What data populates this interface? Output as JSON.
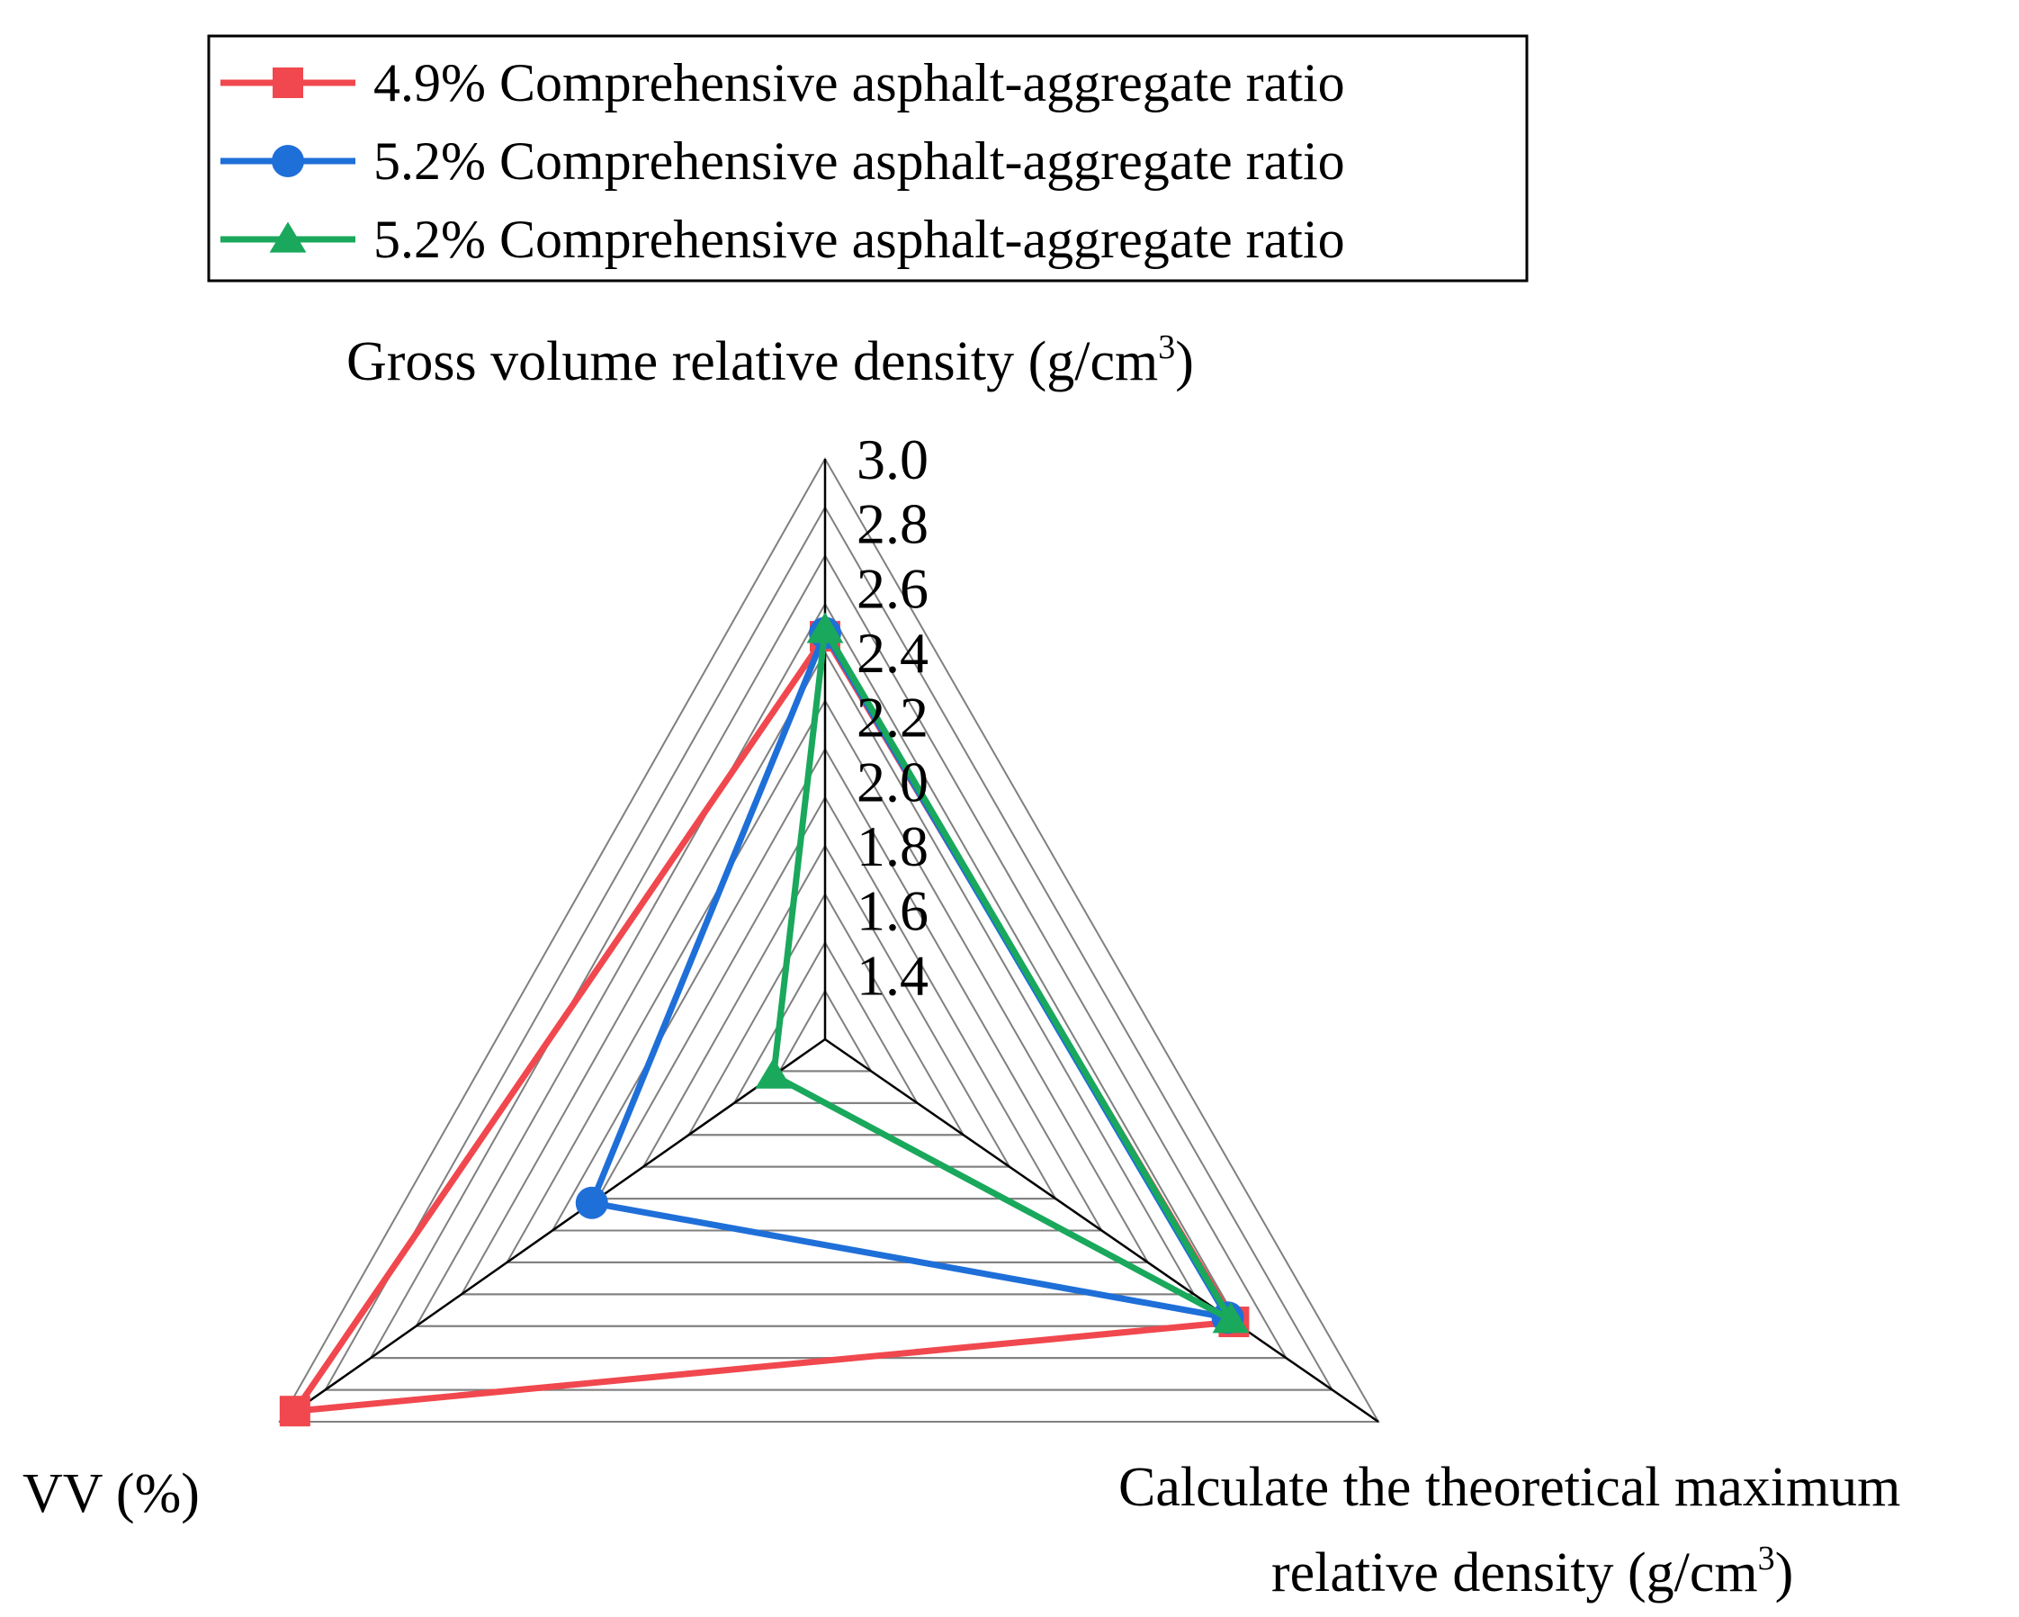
{
  "chart_data": {
    "type": "radar",
    "axes": [
      {
        "key": "gross",
        "label": "Gross volume relative density (g/cm",
        "sup": "3",
        "suffix": ")"
      },
      {
        "key": "theoretical",
        "label_line1": "Calculate the theoretical maximum",
        "label_line2": "relative density (g/cm",
        "sup": "3",
        "suffix": ")"
      },
      {
        "key": "vv",
        "label": "VV (%)"
      }
    ],
    "rlim": [
      1.2,
      3.0
    ],
    "ticks": [
      1.4,
      1.6,
      1.8,
      2.0,
      2.2,
      2.4,
      2.6,
      2.8,
      3.0
    ],
    "tick_labels": [
      "1.4",
      "1.6",
      "1.8",
      "2.0",
      "2.2",
      "2.4",
      "2.6",
      "2.8",
      "3.0"
    ],
    "grid_steps": 12,
    "series": [
      {
        "name": "4.9% Comprehensive asphalt-aggregate ratio",
        "color": "#f0484e",
        "marker": "square",
        "values": {
          "gross": 2.45,
          "theoretical": 2.53,
          "vv": 2.95
        }
      },
      {
        "name": "5.2% Comprehensive asphalt-aggregate ratio",
        "color": "#1f6fd8",
        "marker": "circle",
        "values": {
          "gross": 2.46,
          "theoretical": 2.51,
          "vv": 1.97
        }
      },
      {
        "name": "5.2% Comprehensive asphalt-aggregate ratio",
        "color": "#1aa85c",
        "marker": "triangle",
        "values": {
          "gross": 2.47,
          "theoretical": 2.52,
          "vv": 1.37
        }
      }
    ],
    "legend_position": "top-left"
  }
}
